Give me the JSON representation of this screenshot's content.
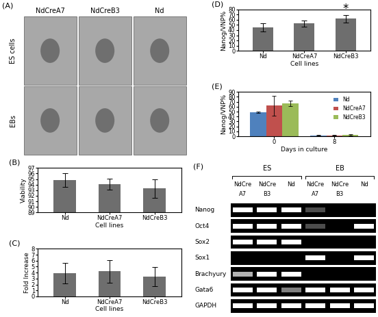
{
  "chart_data": [
    {
      "type": "bar",
      "title": "(B)",
      "categories": [
        "Nd",
        "NdCreA7",
        "NdCreB3"
      ],
      "values": [
        94.8,
        94.1,
        93.3
      ],
      "errors": [
        1.2,
        1.0,
        1.7
      ],
      "color": "#6e6e6e",
      "xlabel": "Cell lines",
      "ylabel": "Viability",
      "ylim": [
        89,
        97
      ],
      "yticks": [
        89,
        90,
        91,
        92,
        93,
        94,
        95,
        96,
        97
      ]
    },
    {
      "type": "bar",
      "title": "(C)",
      "categories": [
        "Nd",
        "NdCreA7",
        "NdCreB3"
      ],
      "values": [
        3.9,
        4.2,
        3.3
      ],
      "errors": [
        1.7,
        1.9,
        1.6
      ],
      "color": "#6e6e6e",
      "xlabel": "Cell lines",
      "ylabel": "Fold Increase",
      "ylim": [
        0,
        8
      ],
      "yticks": [
        0,
        1,
        2,
        3,
        4,
        5,
        6,
        7,
        8
      ]
    },
    {
      "type": "bar",
      "title": "(D)",
      "categories": [
        "Nd",
        "NdCreA7",
        "NdCreB3"
      ],
      "values": [
        45,
        53,
        62
      ],
      "errors": [
        8,
        6,
        7
      ],
      "color": "#6e6e6e",
      "xlabel": "Cell lines",
      "ylabel": "Nanog/VNP%",
      "ylim": [
        0,
        80
      ],
      "yticks": [
        0,
        10,
        20,
        30,
        40,
        50,
        60,
        70,
        80
      ],
      "annotations": [
        {
          "category": "NdCreB3",
          "text": "*"
        }
      ]
    },
    {
      "type": "bar",
      "title": "(E)",
      "categories": [
        "0",
        "8"
      ],
      "series": [
        {
          "name": "Nd",
          "color": "#4f81bd",
          "values": [
            49,
            2
          ],
          "errors": [
            1,
            0.5
          ]
        },
        {
          "name": "NdCreA7",
          "color": "#c0504d",
          "values": [
            62,
            2
          ],
          "errors": [
            20,
            1
          ]
        },
        {
          "name": "NdCreB3",
          "color": "#9bbb59",
          "values": [
            67,
            3
          ],
          "errors": [
            6,
            1.5
          ]
        }
      ],
      "xlabel": "Days in culture",
      "ylabel": "Nanog/VNP%",
      "ylim": [
        0,
        90
      ],
      "yticks": [
        0,
        10,
        20,
        30,
        40,
        50,
        60,
        70,
        80,
        90
      ],
      "legend": "upper right"
    }
  ],
  "images": {
    "panel": "(A)",
    "columns": [
      "NdCreA7",
      "NdCreB3",
      "Nd"
    ],
    "rows": [
      "ES cells",
      "EBs"
    ]
  },
  "gel": {
    "panel": "(F)",
    "groups": [
      {
        "label": "ES",
        "lanes": [
          {
            "label": "NdCre",
            "sublabel": "A7"
          },
          {
            "label": "NdCre",
            "sublabel": "B3"
          },
          {
            "label": "Nd"
          }
        ]
      },
      {
        "label": "EB",
        "lanes": [
          {
            "label": "NdCre",
            "sublabel": "A7"
          },
          {
            "label": "NdCre",
            "sublabel": "B3"
          },
          {
            "label": "Nd"
          }
        ]
      }
    ],
    "genes": [
      "Nanog",
      "Oct4",
      "Sox2",
      "Sox1",
      "Brachyury",
      "Gata6",
      "GAPDH"
    ],
    "bands": [
      [
        1,
        1,
        1,
        0.3,
        0,
        0
      ],
      [
        1,
        1,
        1,
        0.3,
        0,
        1
      ],
      [
        1,
        1,
        1,
        0,
        0,
        0
      ],
      [
        0,
        0,
        0,
        1,
        0,
        1
      ],
      [
        0.7,
        1,
        1,
        0,
        0,
        0
      ],
      [
        1,
        1,
        0.5,
        1,
        1,
        1
      ],
      [
        1,
        1,
        1,
        1,
        1,
        1
      ]
    ]
  }
}
